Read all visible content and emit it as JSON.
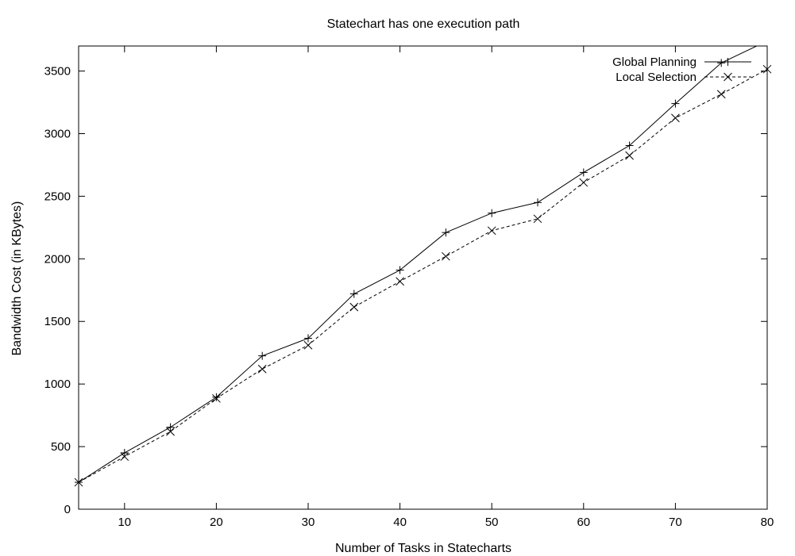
{
  "chart_data": {
    "type": "line",
    "title": "Statechart has one execution path",
    "xlabel": "Number of Tasks in Statecharts",
    "ylabel": "Bandwidth Cost (in KBytes)",
    "xlim": [
      5,
      80
    ],
    "ylim": [
      0,
      3700
    ],
    "xticks": [
      10,
      20,
      30,
      40,
      50,
      60,
      70,
      80
    ],
    "yticks": [
      0,
      500,
      1000,
      1500,
      2000,
      2500,
      3000,
      3500
    ],
    "grid": false,
    "legend_position": "top-right",
    "x": [
      5,
      10,
      15,
      20,
      25,
      30,
      35,
      40,
      45,
      50,
      55,
      60,
      65,
      70,
      75,
      80
    ],
    "series": [
      {
        "name": "Global Planning",
        "line_style": "solid",
        "marker": "plus",
        "values": [
          215,
          450,
          655,
          895,
          1225,
          1365,
          1720,
          1910,
          2210,
          2365,
          2450,
          2690,
          2905,
          3240,
          3565,
          3740
        ]
      },
      {
        "name": "Local Selection",
        "line_style": "dashed",
        "marker": "cross",
        "values": [
          215,
          420,
          620,
          885,
          1120,
          1310,
          1615,
          1820,
          2020,
          2225,
          2320,
          2610,
          2825,
          3125,
          3315,
          3515
        ]
      }
    ],
    "colors": {
      "line": "#000000",
      "background": "#ffffff"
    }
  }
}
